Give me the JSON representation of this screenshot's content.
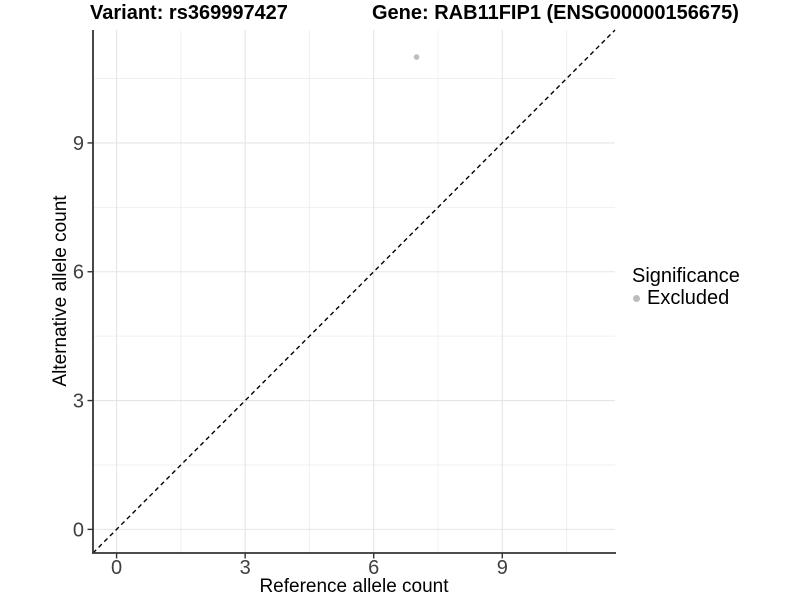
{
  "titles": {
    "variant": "Variant: rs369997427",
    "gene": "Gene: RAB11FIP1 (ENSG00000156675)"
  },
  "legend": {
    "title": "Significance",
    "items": [
      {
        "label": "Excluded",
        "color": "#bdbdbd",
        "marker": "circle-icon"
      }
    ]
  },
  "chart_data": {
    "type": "scatter",
    "xlabel": "Reference allele count",
    "ylabel": "Alternative allele count",
    "xticks": [
      0,
      3,
      6,
      9
    ],
    "yticks": [
      0,
      3,
      6,
      9
    ],
    "minor_ticks": [
      1.5,
      4.5,
      7.5,
      10.5
    ],
    "xlim": [
      -0.55,
      11.63
    ],
    "ylim": [
      -0.55,
      11.63
    ],
    "grid": "major+minor",
    "legend_position": "right",
    "identity_line": {
      "style": "dashed",
      "color": "#000000",
      "equation": "y = x"
    },
    "series": [
      {
        "name": "Excluded",
        "color": "#bdbdbd",
        "points": [
          {
            "x": 7,
            "y": 11
          }
        ]
      }
    ]
  },
  "colors": {
    "background": "#ffffff",
    "grid_major": "#e5e5e5",
    "grid_minor": "#f0f0f0",
    "axis_line": "#333333",
    "tick_label": "#404040",
    "text": "#000000"
  }
}
